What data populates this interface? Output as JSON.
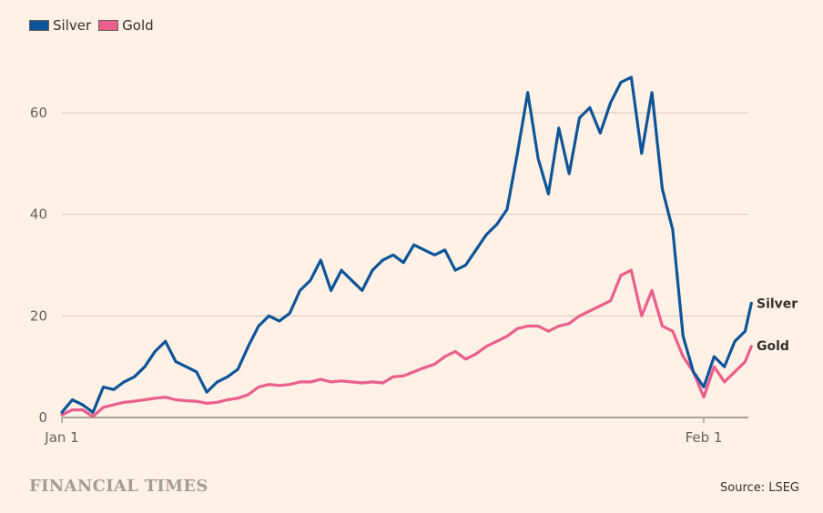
{
  "chart_data": {
    "type": "line",
    "title": "",
    "xlabel": "",
    "ylabel": "",
    "ylim": [
      0,
      70
    ],
    "yticks": [
      0,
      20,
      40,
      60
    ],
    "xtick_labels": [
      "Jan 1",
      "Feb 1"
    ],
    "xtick_days": [
      0,
      31
    ],
    "xlim_days": [
      0,
      33.3
    ],
    "grid": true,
    "legend_position": "top-left",
    "series": [
      {
        "name": "Silver",
        "color": "#0f5499",
        "end_label": "Silver",
        "x": [
          0,
          0.5,
          1,
          1.5,
          2,
          2.5,
          3,
          3.5,
          4,
          4.5,
          5,
          5.5,
          6,
          6.5,
          7,
          7.5,
          8,
          8.5,
          9,
          9.5,
          10,
          10.5,
          11,
          11.5,
          12,
          12.5,
          13,
          13.5,
          14,
          14.5,
          15,
          15.5,
          16,
          16.5,
          17,
          17.5,
          18,
          18.5,
          19,
          19.5,
          20,
          20.5,
          21,
          21.5,
          22,
          22.5,
          23,
          23.5,
          24,
          24.5,
          25,
          25.5,
          26,
          26.5,
          27,
          27.5,
          28,
          28.5,
          29,
          29.5,
          30,
          30.5,
          31,
          31.5,
          32,
          32.5,
          33,
          33.3
        ],
        "y": [
          1,
          3.5,
          2.5,
          1,
          6,
          5.5,
          7,
          8,
          10,
          13,
          15,
          11,
          10,
          9,
          5,
          7,
          8,
          9.5,
          14,
          18,
          20,
          19,
          20.5,
          25,
          27,
          31,
          25,
          29,
          27,
          25,
          29,
          31,
          32,
          30.5,
          34,
          33,
          32,
          33,
          29,
          30,
          33,
          36,
          38,
          41,
          52,
          64,
          51,
          44,
          57,
          48,
          59,
          61,
          56,
          62,
          66,
          67,
          52,
          64,
          45,
          37,
          16,
          9,
          6,
          12,
          10,
          15,
          17,
          22.5
        ]
      },
      {
        "name": "Gold",
        "color": "#eb5e8d",
        "end_label": "Gold",
        "x": [
          0,
          0.5,
          1,
          1.5,
          2,
          2.5,
          3,
          3.5,
          4,
          4.5,
          5,
          5.5,
          6,
          6.5,
          7,
          7.5,
          8,
          8.5,
          9,
          9.5,
          10,
          10.5,
          11,
          11.5,
          12,
          12.5,
          13,
          13.5,
          14,
          14.5,
          15,
          15.5,
          16,
          16.5,
          17,
          17.5,
          18,
          18.5,
          19,
          19.5,
          20,
          20.5,
          21,
          21.5,
          22,
          22.5,
          23,
          23.5,
          24,
          24.5,
          25,
          25.5,
          26,
          26.5,
          27,
          27.5,
          28,
          28.5,
          29,
          29.5,
          30,
          30.5,
          31,
          31.5,
          32,
          32.5,
          33,
          33.3
        ],
        "y": [
          0.5,
          1.5,
          1.5,
          0.2,
          2,
          2.5,
          3,
          3.2,
          3.5,
          3.8,
          4,
          3.5,
          3.3,
          3.2,
          2.8,
          3,
          3.5,
          3.8,
          4.5,
          6,
          6.5,
          6.3,
          6.5,
          7,
          7,
          7.5,
          7,
          7.2,
          7,
          6.8,
          7,
          6.8,
          8,
          8.2,
          9,
          9.8,
          10.5,
          12,
          13,
          11.5,
          12.5,
          14,
          15,
          16,
          17.5,
          18,
          18,
          17,
          18,
          18.5,
          20,
          21,
          22,
          23,
          28,
          29,
          20,
          25,
          18,
          17,
          12,
          9,
          4,
          10,
          7,
          9,
          11,
          14
        ]
      }
    ]
  },
  "legend": {
    "items": [
      "Silver",
      "Gold"
    ]
  },
  "footer": {
    "brand": "FINANCIAL TIMES",
    "source": "Source: LSEG"
  }
}
